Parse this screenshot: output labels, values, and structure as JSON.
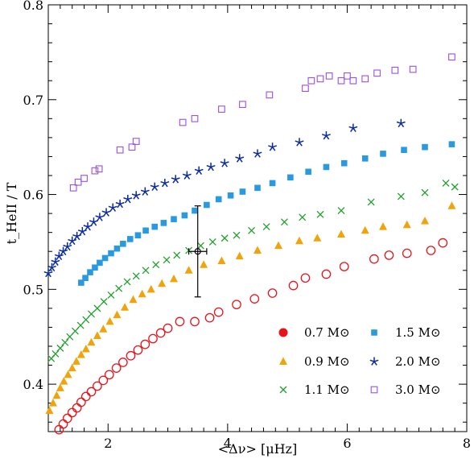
{
  "chart_data": {
    "type": "scatter",
    "title": "",
    "xlabel": "<Δν>  [μHz]",
    "ylabel": "t_HeII / T",
    "xlim": [
      1.0,
      8.0
    ],
    "ylim": [
      0.35,
      0.8
    ],
    "xticks": [
      2,
      4,
      6,
      8
    ],
    "yticks": [
      0.4,
      0.5,
      0.6,
      0.7,
      0.8
    ],
    "grid": false,
    "legend_position": "bottom-right",
    "series": [
      {
        "name": "0.7 M⊙",
        "marker": "open-circle",
        "color": "#e8141c",
        "x": [
          1.18,
          1.25,
          1.32,
          1.4,
          1.48,
          1.55,
          1.63,
          1.72,
          1.82,
          1.92,
          2.02,
          2.14,
          2.25,
          2.38,
          2.5,
          2.62,
          2.75,
          2.88,
          3.0,
          3.2,
          3.45,
          3.7,
          3.85,
          4.15,
          4.45,
          4.75,
          5.1,
          5.3,
          5.65,
          5.95,
          6.45,
          6.7,
          7.0,
          7.4,
          7.6
        ],
        "y": [
          0.352,
          0.358,
          0.364,
          0.37,
          0.375,
          0.381,
          0.387,
          0.392,
          0.398,
          0.404,
          0.41,
          0.417,
          0.423,
          0.43,
          0.436,
          0.442,
          0.448,
          0.454,
          0.459,
          0.466,
          0.466,
          0.47,
          0.476,
          0.484,
          0.49,
          0.496,
          0.504,
          0.512,
          0.516,
          0.524,
          0.532,
          0.536,
          0.538,
          0.541,
          0.549
        ]
      },
      {
        "name": "0.9 M⊙",
        "marker": "filled-triangle",
        "color": "#f0a30a",
        "x": [
          1.02,
          1.08,
          1.14,
          1.2,
          1.26,
          1.33,
          1.4,
          1.47,
          1.55,
          1.63,
          1.72,
          1.82,
          1.92,
          2.03,
          2.15,
          2.28,
          2.42,
          2.57,
          2.72,
          2.9,
          3.1,
          3.35,
          3.6,
          3.9,
          4.2,
          4.5,
          4.85,
          5.2,
          5.5,
          5.9,
          6.3,
          6.6,
          7.0,
          7.3,
          7.75
        ],
        "y": [
          0.372,
          0.38,
          0.388,
          0.396,
          0.403,
          0.41,
          0.417,
          0.424,
          0.431,
          0.437,
          0.444,
          0.451,
          0.458,
          0.466,
          0.473,
          0.481,
          0.489,
          0.495,
          0.5,
          0.506,
          0.511,
          0.52,
          0.526,
          0.53,
          0.535,
          0.541,
          0.546,
          0.551,
          0.554,
          0.558,
          0.562,
          0.566,
          0.568,
          0.572,
          0.588
        ]
      },
      {
        "name": "1.1 M⊙",
        "marker": "cross",
        "color": "#1fa02a",
        "x": [
          1.05,
          1.12,
          1.2,
          1.28,
          1.36,
          1.45,
          1.54,
          1.63,
          1.72,
          1.82,
          1.93,
          2.05,
          2.18,
          2.32,
          2.47,
          2.63,
          2.8,
          2.98,
          3.15,
          3.35,
          3.55,
          3.75,
          3.95,
          4.15,
          4.4,
          4.65,
          4.95,
          5.25,
          5.55,
          5.9,
          6.4,
          6.9,
          7.3,
          7.65,
          7.8
        ],
        "y": [
          0.427,
          0.432,
          0.438,
          0.444,
          0.45,
          0.456,
          0.462,
          0.468,
          0.474,
          0.48,
          0.487,
          0.494,
          0.501,
          0.508,
          0.514,
          0.52,
          0.526,
          0.531,
          0.536,
          0.541,
          0.546,
          0.55,
          0.554,
          0.557,
          0.562,
          0.566,
          0.571,
          0.576,
          0.579,
          0.583,
          0.592,
          0.598,
          0.602,
          0.612,
          0.608
        ]
      },
      {
        "name": "1.5 M⊙",
        "marker": "filled-square",
        "color": "#2a9ae0",
        "x": [
          1.55,
          1.62,
          1.7,
          1.78,
          1.86,
          1.95,
          2.05,
          2.15,
          2.25,
          2.37,
          2.5,
          2.63,
          2.78,
          2.93,
          3.1,
          3.28,
          3.45,
          3.65,
          3.85,
          4.05,
          4.25,
          4.5,
          4.75,
          5.05,
          5.35,
          5.65,
          5.95,
          6.3,
          6.6,
          6.95,
          7.3,
          7.75
        ],
        "y": [
          0.507,
          0.512,
          0.518,
          0.523,
          0.528,
          0.533,
          0.538,
          0.543,
          0.548,
          0.553,
          0.557,
          0.562,
          0.566,
          0.57,
          0.574,
          0.578,
          0.583,
          0.589,
          0.595,
          0.599,
          0.603,
          0.607,
          0.612,
          0.618,
          0.624,
          0.629,
          0.633,
          0.638,
          0.643,
          0.647,
          0.65,
          0.653
        ]
      },
      {
        "name": "2.0 M⊙",
        "marker": "star",
        "color": "#0a2aa0",
        "x": [
          1.0,
          1.06,
          1.12,
          1.18,
          1.25,
          1.32,
          1.4,
          1.48,
          1.57,
          1.66,
          1.76,
          1.86,
          1.97,
          2.08,
          2.2,
          2.33,
          2.47,
          2.62,
          2.78,
          2.95,
          3.13,
          3.32,
          3.52,
          3.72,
          3.95,
          4.2,
          4.5,
          4.75,
          5.2,
          5.65,
          6.1,
          6.9
        ],
        "y": [
          0.517,
          0.523,
          0.529,
          0.535,
          0.54,
          0.545,
          0.551,
          0.556,
          0.561,
          0.566,
          0.571,
          0.576,
          0.581,
          0.586,
          0.59,
          0.595,
          0.599,
          0.603,
          0.608,
          0.612,
          0.616,
          0.62,
          0.625,
          0.629,
          0.633,
          0.638,
          0.643,
          0.65,
          0.655,
          0.662,
          0.67,
          0.675
        ]
      },
      {
        "name": "3.0 M⊙",
        "marker": "open-square",
        "color": "#9a50e0",
        "x": [
          1.42,
          1.5,
          1.6,
          1.78,
          1.85,
          2.2,
          2.4,
          2.47,
          3.25,
          3.45,
          3.9,
          4.25,
          4.7,
          5.3,
          5.4,
          5.55,
          5.7,
          5.9,
          6.0,
          6.1,
          6.3,
          6.5,
          6.8,
          7.1,
          7.75
        ],
        "y": [
          0.607,
          0.613,
          0.617,
          0.625,
          0.627,
          0.647,
          0.65,
          0.656,
          0.676,
          0.68,
          0.69,
          0.695,
          0.705,
          0.712,
          0.72,
          0.722,
          0.725,
          0.72,
          0.725,
          0.72,
          0.722,
          0.728,
          0.731,
          0.732,
          0.745
        ]
      }
    ],
    "observation": {
      "x": 3.5,
      "y": 0.54,
      "x_err": 0.15,
      "y_err": 0.048,
      "color": "#000000"
    }
  }
}
